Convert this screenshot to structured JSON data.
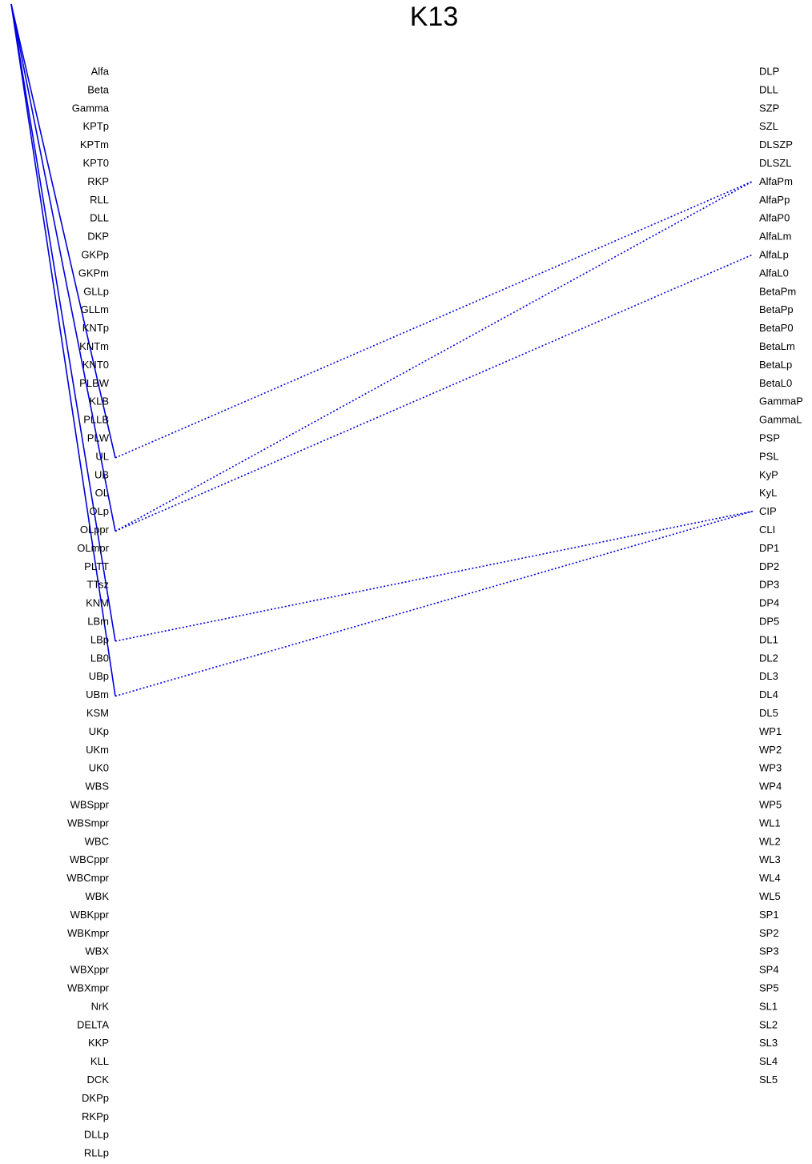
{
  "title": "K13",
  "colors": {
    "link": "#0000dd",
    "text": "#000000",
    "background": "#ffffff"
  },
  "left_items": [
    "Alfa",
    "Beta",
    "Gamma",
    "KPTp",
    "KPTm",
    "KPT0",
    "RKP",
    "RLL",
    "DLL",
    "DKP",
    "GKPp",
    "GKPm",
    "GLLp",
    "GLLm",
    "KNTp",
    "KNTm",
    "KNT0",
    "PLBW",
    "KLB",
    "PLLB",
    "PLW",
    "UL",
    "UB",
    "OL",
    "OLp",
    "OLppr",
    "OLmpr",
    "PLTT",
    "TTsz",
    "KNM",
    "LBm",
    "LBp",
    "LB0",
    "UBp",
    "UBm",
    "KSM",
    "UKp",
    "UKm",
    "UK0",
    "WBS",
    "WBSppr",
    "WBSmpr",
    "WBC",
    "WBCppr",
    "WBCmpr",
    "WBK",
    "WBKppr",
    "WBKmpr",
    "WBX",
    "WBXppr",
    "WBXmpr",
    "NrK",
    "DELTA",
    "KKP",
    "KLL",
    "DCK",
    "DKPp",
    "RKPp",
    "DLLp",
    "RLLp"
  ],
  "right_items": [
    "DLP",
    "DLL",
    "SZP",
    "SZL",
    "DLSZP",
    "DLSZL",
    "AlfaPm",
    "AlfaPp",
    "AlfaP0",
    "AlfaLm",
    "AlfaLp",
    "AlfaL0",
    "BetaPm",
    "BetaPp",
    "BetaP0",
    "BetaLm",
    "BetaLp",
    "BetaL0",
    "GammaP",
    "GammaL",
    "PSP",
    "PSL",
    "KyP",
    "KyL",
    "CIP",
    "CLI",
    "DP1",
    "DP2",
    "DP3",
    "DP4",
    "DP5",
    "DL1",
    "DL2",
    "DL3",
    "DL4",
    "DL5",
    "WP1",
    "WP2",
    "WP3",
    "WP4",
    "WP5",
    "WL1",
    "WL2",
    "WL3",
    "WL4",
    "WL5",
    "SP1",
    "SP2",
    "SP3",
    "SP4",
    "SP5",
    "SL1",
    "SL2",
    "SL3",
    "SL4",
    "SL5"
  ],
  "root_links": [
    "UL",
    "OLppr",
    "LBp",
    "UBm"
  ],
  "dotted_links": [
    {
      "from": "UL",
      "to": "AlfaPm"
    },
    {
      "from": "OLppr",
      "to": "AlfaPm"
    },
    {
      "from": "OLppr",
      "to": "AlfaLp"
    },
    {
      "from": "LBp",
      "to": "CIP"
    },
    {
      "from": "UBm",
      "to": "CIP"
    }
  ]
}
